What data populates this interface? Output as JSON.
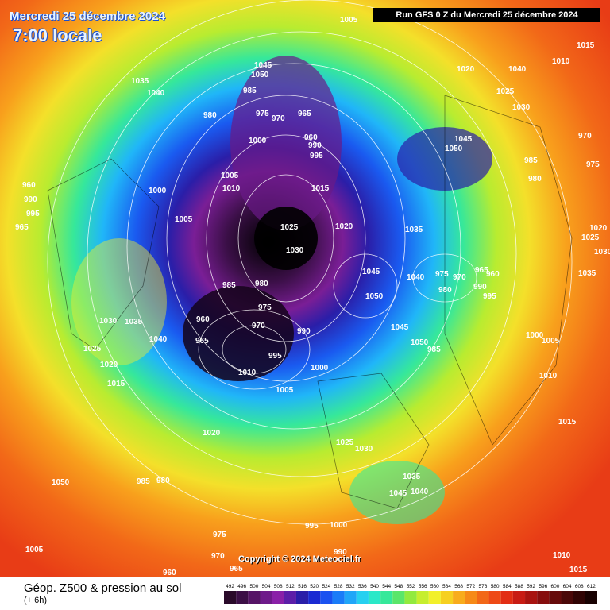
{
  "header": {
    "date_label": "Mercredi 25 décembre 2024",
    "time_label": "7:00 locale",
    "run_label": "Run GFS 0 Z du Mercredi 25 décembre 2024"
  },
  "map": {
    "copyright": "Copyright © 2024 Meteociel.fr",
    "pressure_labels": [
      "1005",
      "1010",
      "1015",
      "1020",
      "1025",
      "1030",
      "1035",
      "1040",
      "1045",
      "1050",
      "985",
      "980",
      "975",
      "970",
      "965",
      "960",
      "990",
      "995",
      "1000"
    ]
  },
  "legend": {
    "title": "Géop. Z500 & pression au sol",
    "subtitle": "(+ 6h)",
    "ticks": [
      "492",
      "496",
      "500",
      "504",
      "508",
      "512",
      "516",
      "520",
      "524",
      "528",
      "532",
      "536",
      "540",
      "544",
      "548",
      "552",
      "556",
      "560",
      "564",
      "568",
      "572",
      "576",
      "580",
      "584",
      "588",
      "592",
      "596",
      "600",
      "604",
      "608",
      "612"
    ],
    "colors": [
      "#2a0a2a",
      "#3c0f46",
      "#561466",
      "#6e1a8a",
      "#8a20a8",
      "#5c1ea8",
      "#2a1ea8",
      "#1a2ad2",
      "#1a52f0",
      "#1a7cf8",
      "#20a6f8",
      "#26d0f0",
      "#2ae8c8",
      "#36e89a",
      "#5ae66a",
      "#92ea3e",
      "#c6ee2e",
      "#f2f02a",
      "#f6d020",
      "#f8ac1c",
      "#f68a18",
      "#f26818",
      "#ee4a16",
      "#e22e14",
      "#c81c14",
      "#a81410",
      "#860e0e",
      "#660a0a",
      "#4a0808",
      "#300404",
      "#180202"
    ]
  }
}
